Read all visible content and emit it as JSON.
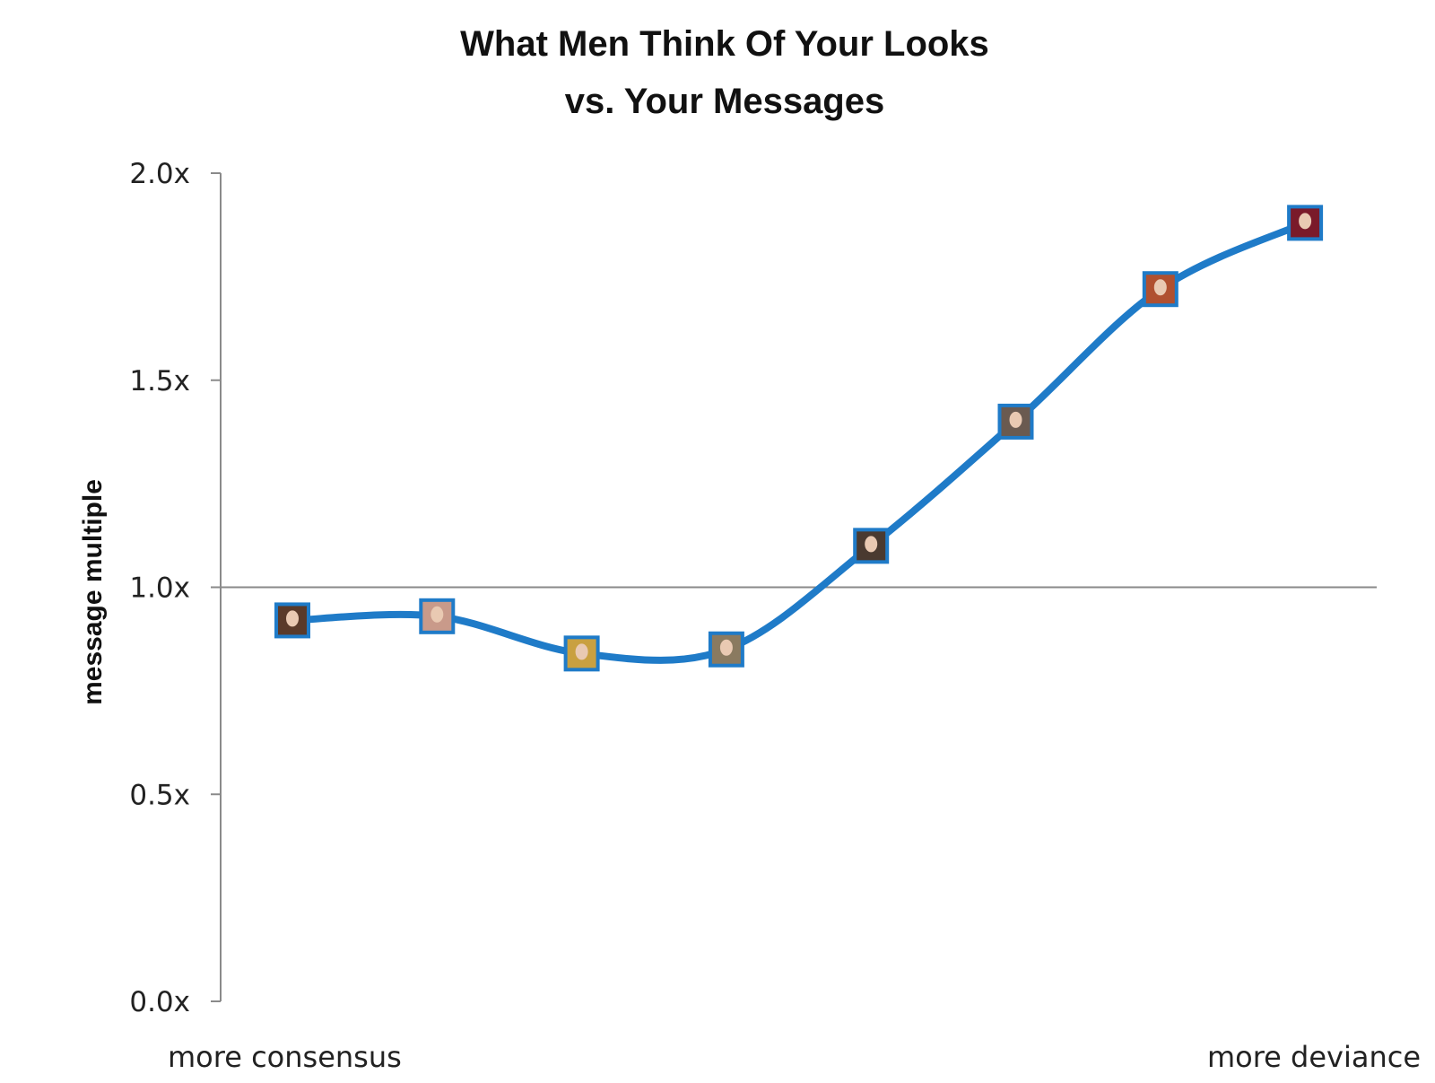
{
  "chart_data": {
    "type": "line",
    "title": [
      "What Men Think Of Your Looks",
      "vs. Your Messages"
    ],
    "ylabel": "message multiple",
    "x_axis_endpoint_labels": {
      "left": "more consensus",
      "right": "more deviance"
    },
    "yticks": [
      "0.0x",
      "0.5x",
      "1.0x",
      "1.5x",
      "2.0x"
    ],
    "ytick_values": [
      0,
      0.5,
      1.0,
      1.5,
      2.0
    ],
    "ylim": [
      0,
      2.0
    ],
    "xlim": [
      0,
      8
    ],
    "reference_line": 1.0,
    "grid": false,
    "line_color": "#1f7bc8",
    "marker": "profile-photo-thumbnail",
    "series": [
      {
        "x": [
          1,
          2,
          3,
          4,
          5,
          6,
          7,
          8
        ],
        "values": [
          0.92,
          0.93,
          0.84,
          0.85,
          1.1,
          1.4,
          1.72,
          1.88
        ]
      }
    ]
  }
}
